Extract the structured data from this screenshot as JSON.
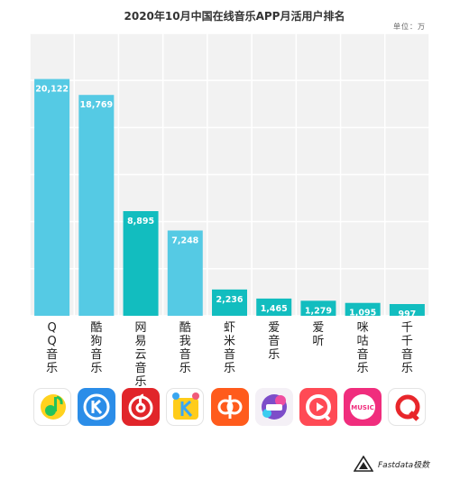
{
  "chart_data": {
    "type": "bar",
    "title": "2020年10月中国在线音乐APP月活用户排名",
    "unit_label": "单位：万",
    "categories": [
      "QQ音乐",
      "酷狗音乐",
      "网易云音乐",
      "酷我音乐",
      "虾米音乐",
      "爱音乐",
      "爱听",
      "咪咕音乐",
      "千千音乐"
    ],
    "values": [
      20122,
      18769,
      8895,
      7248,
      2236,
      1465,
      1279,
      1095,
      997
    ],
    "value_labels": [
      "20,122",
      "18,769",
      "8,895",
      "7,248",
      "2,236",
      "1,465",
      "1,279",
      "1,095",
      "997"
    ],
    "bar_colors": [
      "#55cae4",
      "#55cae4",
      "#12bdbf",
      "#55cae4",
      "#12bdbf",
      "#12bdbf",
      "#12bdbf",
      "#12bdbf",
      "#12bdbf"
    ],
    "ylim": [
      0,
      24000
    ],
    "grid": true,
    "plot_background": "#f2f2f2",
    "grid_color": "#ffffff"
  },
  "app_icons": [
    {
      "name": "qq-music-icon",
      "bg": "#ffffff",
      "accent": "#22c35b",
      "accent2": "#ffd21f"
    },
    {
      "name": "kugou-icon",
      "bg": "#2b8de8",
      "accent": "#ffffff"
    },
    {
      "name": "netease-cloud-music-icon",
      "bg": "#e1252a",
      "accent": "#ffffff"
    },
    {
      "name": "kuwo-icon",
      "bg": "#ffffff",
      "accent": "#ffcc1a",
      "accent2": "#3aa6f0"
    },
    {
      "name": "xiami-icon",
      "bg": "#ff5b1c",
      "accent": "#ffffff"
    },
    {
      "name": "imusic-icon",
      "bg": "#f4f0f6",
      "accent": "#7d4dc9",
      "accent2": "#f04ea0"
    },
    {
      "name": "aiting-icon",
      "bg": "#ff4a55",
      "accent": "#ffffff"
    },
    {
      "name": "migu-icon",
      "bg": "#f02d7d",
      "accent": "#ffffff",
      "text": "MUSIC"
    },
    {
      "name": "qianqian-icon",
      "bg": "#ffffff",
      "accent": "#e8262b"
    }
  ],
  "brand": {
    "text": "Fastdata极数"
  }
}
